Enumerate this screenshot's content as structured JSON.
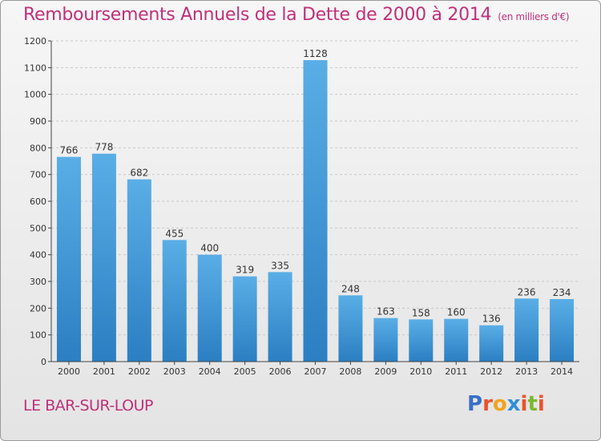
{
  "header": {
    "title": "Remboursements Annuels de la Dette de 2000 à 2014",
    "unit": "(en milliers d'€)"
  },
  "footer": {
    "city": "LE BAR-SUR-LOUP",
    "logo_text": "Proxiti"
  },
  "colors": {
    "bar_light": "#5aaee6",
    "bar_dark": "#2b7fc2",
    "title": "#c0307a"
  },
  "chart_data": {
    "type": "bar",
    "title": "Remboursements Annuels de la Dette de 2000 à 2014",
    "subtitle": "(en milliers d'€)",
    "categories": [
      "2000",
      "2001",
      "2002",
      "2003",
      "2004",
      "2005",
      "2006",
      "2007",
      "2008",
      "2009",
      "2010",
      "2011",
      "2012",
      "2013",
      "2014"
    ],
    "values": [
      766,
      778,
      682,
      455,
      400,
      319,
      335,
      1128,
      248,
      163,
      158,
      160,
      136,
      236,
      234
    ],
    "ylim": [
      0,
      1200
    ],
    "yticks": [
      0,
      100,
      200,
      300,
      400,
      500,
      600,
      700,
      800,
      900,
      1000,
      1100,
      1200
    ],
    "grid": true,
    "legend": "none"
  }
}
